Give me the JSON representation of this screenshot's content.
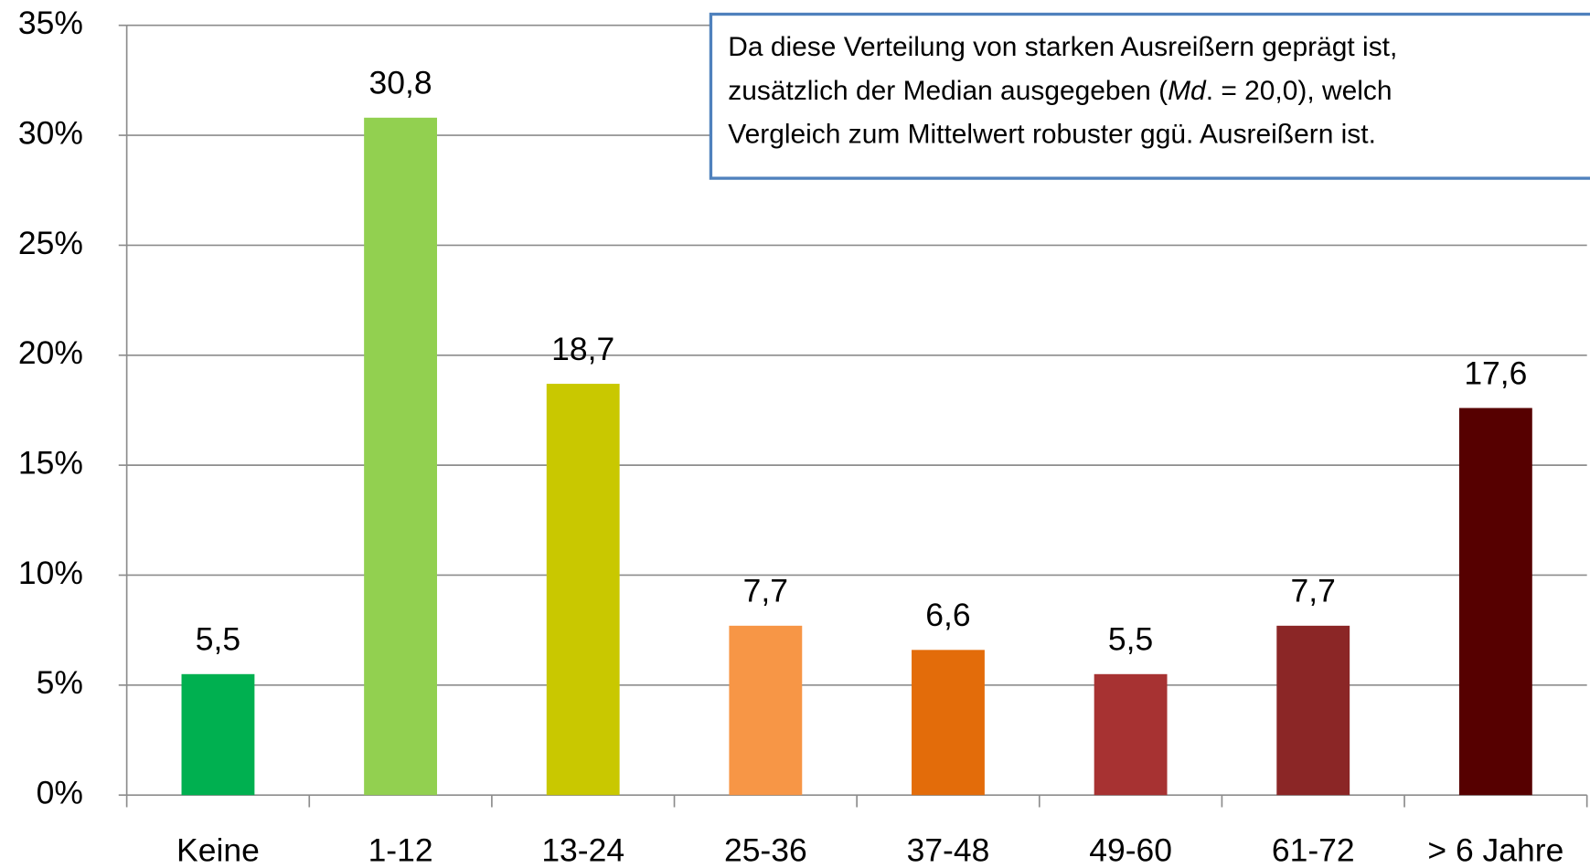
{
  "chart_data": {
    "type": "bar",
    "categories": [
      "Keine",
      "1-12",
      "13-24",
      "25-36",
      "37-48",
      "49-60",
      "61-72",
      "> 6 Jahre"
    ],
    "values": [
      5.5,
      30.8,
      18.7,
      7.7,
      6.6,
      5.5,
      7.7,
      17.6
    ],
    "value_labels": [
      "5,5",
      "30,8",
      "18,7",
      "7,7",
      "6,6",
      "5,5",
      "7,7",
      "17,6"
    ],
    "colors": [
      "#00b050",
      "#92d050",
      "#c9c800",
      "#f79646",
      "#e36c0a",
      "#a73232",
      "#8b2626",
      "#560000"
    ],
    "ylim": [
      0,
      35
    ],
    "yticks": [
      {
        "value": 0,
        "label": "0%"
      },
      {
        "value": 5,
        "label": "5%"
      },
      {
        "value": 10,
        "label": "10%"
      },
      {
        "value": 15,
        "label": "15%"
      },
      {
        "value": 20,
        "label": "20%"
      },
      {
        "value": 25,
        "label": "25%"
      },
      {
        "value": 30,
        "label": "30%"
      },
      {
        "value": 35,
        "label": "35%"
      }
    ],
    "grid": true,
    "annotation": {
      "lines": [
        [
          "Da diese Verteilung von starken Ausreißern geprägt ist,"
        ],
        [
          "zusätzlich der Median ausgegeben (",
          "Md",
          ". = 20,0), welch"
        ],
        [
          "Vergleich zum Mittelwert robuster ggü. Ausreißern ist."
        ]
      ]
    }
  }
}
